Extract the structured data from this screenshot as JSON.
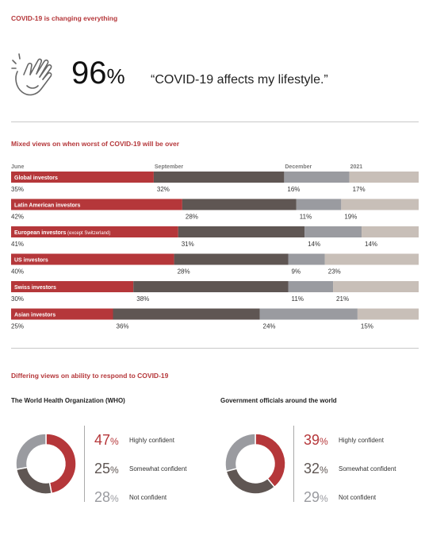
{
  "page": {
    "title": "COVID-19 is changing everything"
  },
  "hero": {
    "icon": "clapping-hands-icon",
    "percent": "96",
    "percent_sign": "%",
    "quote": "“COVID-19 affects my lifestyle.”"
  },
  "section2": {
    "title": "Mixed views on when worst of COVID-19 will be over"
  },
  "section3": {
    "title": "Differing views on ability to respond to COVID-19"
  },
  "colors": {
    "red": "#b5373a",
    "dark": "#5f5653",
    "gray": "#9a9ba0",
    "light": "#c8bfb8"
  },
  "chart_data": [
    {
      "type": "bar",
      "orientation": "horizontal",
      "stacked": true,
      "normalized_to": 100,
      "segment_headers": [
        "June",
        "September",
        "December",
        "2021"
      ],
      "categories": [
        "Global investors",
        "Latin American investors",
        "European investors",
        "US investors",
        "Swiss investors",
        "Asian investors"
      ],
      "category_notes": [
        "",
        "",
        "(except Switzerland)",
        "",
        "",
        ""
      ],
      "series": [
        {
          "name": "June",
          "values": [
            35,
            42,
            41,
            40,
            30,
            25
          ]
        },
        {
          "name": "September",
          "values": [
            32,
            28,
            31,
            28,
            38,
            36
          ]
        },
        {
          "name": "December",
          "values": [
            16,
            11,
            14,
            9,
            11,
            24
          ]
        },
        {
          "name": "2021",
          "values": [
            17,
            19,
            14,
            23,
            21,
            15
          ]
        }
      ],
      "value_suffix": "%"
    },
    {
      "type": "pie",
      "title": "The World Health Organization (WHO)",
      "labels": [
        "Highly confident",
        "Somewhat confident",
        "Not confident"
      ],
      "values": [
        47,
        25,
        28
      ],
      "value_suffix": "%"
    },
    {
      "type": "pie",
      "title": "Government officials around the world",
      "labels": [
        "Highly confident",
        "Somewhat confident",
        "Not confident"
      ],
      "values": [
        39,
        32,
        29
      ],
      "value_suffix": "%"
    }
  ]
}
